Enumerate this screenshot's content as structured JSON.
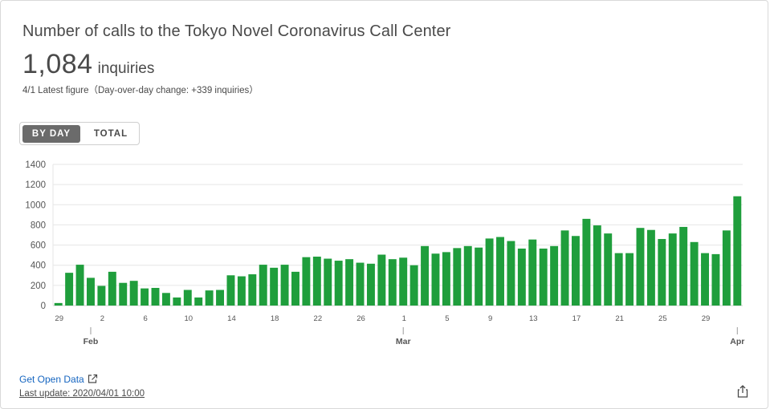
{
  "card": {
    "title": "Number of calls to the Tokyo Novel Coronavirus Call Center",
    "headline_value": "1,084",
    "headline_unit": "inquiries",
    "subtitle": "4/1 Latest figure（Day-over-day change: +339 inquiries）"
  },
  "toggle": {
    "by_day": "BY DAY",
    "total": "TOTAL",
    "selected": "BY DAY"
  },
  "footer": {
    "open_data_label": "Get Open Data",
    "last_update": "Last update: 2020/04/01 10:00"
  },
  "icons": {
    "external_link": "external-link-icon",
    "share": "share-icon"
  },
  "colors": {
    "bar": "#1f9e3c",
    "grid": "#e6e6e6",
    "text": "#4a4a4a",
    "link": "#1565c0"
  },
  "chart_data": {
    "type": "bar",
    "ylim": [
      0,
      1400
    ],
    "yticks": [
      0,
      200,
      400,
      600,
      800,
      1000,
      1200,
      1400
    ],
    "grid": true,
    "x": [
      "1/29",
      "1/30",
      "1/31",
      "2/1",
      "2/2",
      "2/3",
      "2/4",
      "2/5",
      "2/6",
      "2/7",
      "2/8",
      "2/9",
      "2/10",
      "2/11",
      "2/12",
      "2/13",
      "2/14",
      "2/15",
      "2/16",
      "2/17",
      "2/18",
      "2/19",
      "2/20",
      "2/21",
      "2/22",
      "2/23",
      "2/24",
      "2/25",
      "2/26",
      "2/27",
      "2/28",
      "2/29",
      "3/1",
      "3/2",
      "3/3",
      "3/4",
      "3/5",
      "3/6",
      "3/7",
      "3/8",
      "3/9",
      "3/10",
      "3/11",
      "3/12",
      "3/13",
      "3/14",
      "3/15",
      "3/16",
      "3/17",
      "3/18",
      "3/19",
      "3/20",
      "3/21",
      "3/22",
      "3/23",
      "3/24",
      "3/25",
      "3/26",
      "3/27",
      "3/28",
      "3/29",
      "3/30",
      "3/31",
      "4/1"
    ],
    "values": [
      25,
      325,
      405,
      275,
      195,
      335,
      225,
      245,
      170,
      175,
      125,
      80,
      155,
      80,
      150,
      155,
      300,
      290,
      310,
      405,
      375,
      405,
      335,
      480,
      485,
      465,
      445,
      460,
      425,
      415,
      505,
      460,
      475,
      400,
      590,
      515,
      530,
      570,
      590,
      575,
      665,
      680,
      640,
      565,
      655,
      565,
      590,
      745,
      690,
      860,
      795,
      715,
      520,
      520,
      770,
      750,
      660,
      715,
      780,
      630,
      520,
      510,
      745,
      1084
    ],
    "x_tick_labels": [
      "29",
      "2",
      "6",
      "10",
      "14",
      "18",
      "22",
      "26",
      "1",
      "5",
      "9",
      "13",
      "17",
      "21",
      "25",
      "29"
    ],
    "month_labels": [
      "Feb",
      "Mar",
      "Apr"
    ]
  }
}
